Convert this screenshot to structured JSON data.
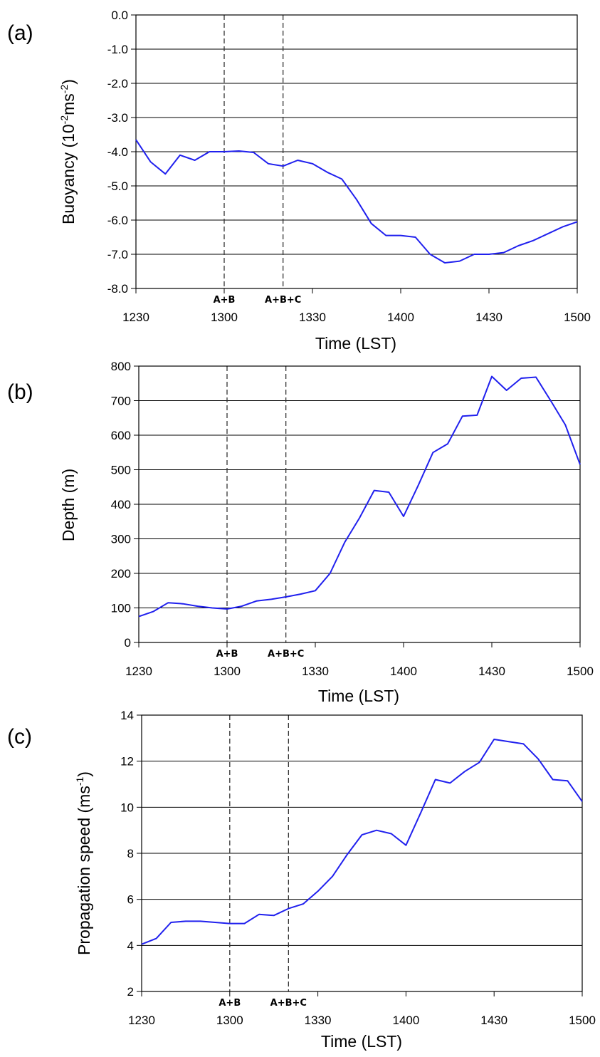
{
  "chart_data": [
    {
      "type": "line",
      "panel_label": "(a)",
      "ylabel_main": "Buoyancy (10",
      "ylabel_sup1": "-2",
      "ylabel_mid": "ms",
      "ylabel_sup2": "-2",
      "ylabel_end": ")",
      "xlabel": "Time (LST)",
      "ylim": [
        -8.0,
        0.0
      ],
      "yticks": [
        0.0,
        -1.0,
        -2.0,
        -3.0,
        -4.0,
        -5.0,
        -6.0,
        -7.0,
        -8.0
      ],
      "ytick_labels": [
        "0.0",
        "-1.0",
        "-2.0",
        "-3.0",
        "-4.0",
        "-5.0",
        "-6.0",
        "-7.0",
        "-8.0"
      ],
      "xticks": [
        "1230",
        "1300",
        "1330",
        "1400",
        "1430",
        "1500"
      ],
      "grid": "horizontal",
      "markers": [
        {
          "label": "A+B",
          "x": 30
        },
        {
          "label": "A+B+C",
          "x": 50
        }
      ],
      "series": [
        {
          "color": "#2020ee",
          "x": [
            0,
            5,
            10,
            15,
            20,
            25,
            30,
            35,
            40,
            45,
            50,
            55,
            60,
            65,
            70,
            75,
            80,
            85,
            90,
            95,
            100,
            105,
            110,
            115,
            120,
            125,
            130,
            135,
            140,
            145,
            150
          ],
          "y": [
            -3.65,
            -4.3,
            -4.65,
            -4.1,
            -4.25,
            -4.0,
            -4.0,
            -3.98,
            -4.02,
            -4.35,
            -4.42,
            -4.25,
            -4.35,
            -4.6,
            -4.8,
            -5.4,
            -6.1,
            -6.45,
            -6.45,
            -6.5,
            -7.0,
            -7.25,
            -7.2,
            -7.0,
            -7.0,
            -6.95,
            -6.75,
            -6.6,
            -6.4,
            -6.2,
            -6.05
          ]
        }
      ]
    },
    {
      "type": "line",
      "panel_label": "(b)",
      "ylabel": "Depth (m)",
      "xlabel": "Time (LST)",
      "ylim": [
        0,
        800
      ],
      "yticks": [
        800,
        700,
        600,
        500,
        400,
        300,
        200,
        100,
        0
      ],
      "ytick_labels": [
        "800",
        "700",
        "600",
        "500",
        "400",
        "300",
        "200",
        "100",
        "0"
      ],
      "xticks": [
        "1230",
        "1300",
        "1330",
        "1400",
        "1430",
        "1500"
      ],
      "grid": "horizontal",
      "markers": [
        {
          "label": "A+B",
          "x": 30
        },
        {
          "label": "A+B+C",
          "x": 50
        }
      ],
      "series": [
        {
          "color": "#2020ee",
          "x": [
            0,
            5,
            10,
            15,
            20,
            25,
            30,
            35,
            40,
            45,
            50,
            55,
            60,
            65,
            70,
            75,
            80,
            85,
            90,
            95,
            100,
            105,
            110,
            115,
            120,
            125,
            130,
            135,
            140,
            145,
            150
          ],
          "y": [
            75,
            90,
            115,
            112,
            105,
            100,
            97,
            105,
            120,
            125,
            132,
            140,
            150,
            200,
            290,
            360,
            440,
            435,
            365,
            455,
            550,
            575,
            655,
            658,
            770,
            730,
            765,
            768,
            700,
            630,
            515
          ]
        }
      ]
    },
    {
      "type": "line",
      "panel_label": "(c)",
      "ylabel_main": "Propagation speed (ms",
      "ylabel_sup": "-1",
      "ylabel_end": ")",
      "xlabel": "Time (LST)",
      "ylim": [
        2,
        14
      ],
      "yticks": [
        14,
        12,
        10,
        8,
        6,
        4,
        2
      ],
      "ytick_labels": [
        "14",
        "12",
        "10",
        "8",
        "6",
        "4",
        "2"
      ],
      "xticks": [
        "1230",
        "1300",
        "1330",
        "1400",
        "1430",
        "1500"
      ],
      "grid": "horizontal",
      "markers": [
        {
          "label": "A+B",
          "x": 30
        },
        {
          "label": "A+B+C",
          "x": 50
        }
      ],
      "series": [
        {
          "color": "#2020ee",
          "x": [
            0,
            5,
            10,
            15,
            20,
            25,
            30,
            35,
            40,
            45,
            50,
            55,
            60,
            65,
            70,
            75,
            80,
            85,
            90,
            95,
            100,
            105,
            110,
            115,
            120,
            125,
            130,
            135,
            140,
            145,
            150
          ],
          "y": [
            4.05,
            4.3,
            5.0,
            5.05,
            5.05,
            5.0,
            4.95,
            4.95,
            5.35,
            5.3,
            5.6,
            5.8,
            6.35,
            7.0,
            7.95,
            8.8,
            9.0,
            8.85,
            8.35,
            9.75,
            11.2,
            11.05,
            11.55,
            11.95,
            12.95,
            12.85,
            12.75,
            12.1,
            11.2,
            11.15,
            10.25
          ]
        }
      ]
    }
  ]
}
